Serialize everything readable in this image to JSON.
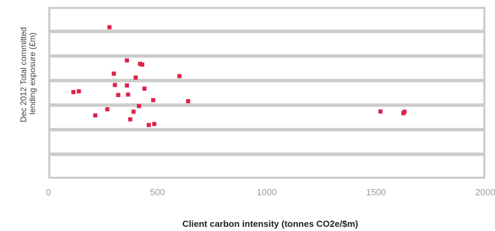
{
  "chart_data": {
    "type": "scatter",
    "title": "",
    "xlabel": "Client carbon intensity (tonnes CO2e/$m)",
    "ylabel_lines": [
      "Dec 2012 Total committed",
      "lending exposure (£m)"
    ],
    "xlim": [
      0,
      2000
    ],
    "x_ticks": [
      0,
      500,
      1000,
      1500,
      2000
    ],
    "x_tick_labels": [
      "0",
      "500",
      "1000",
      "1500",
      "2000"
    ],
    "ylim": [
      0,
      7
    ],
    "y_gridlines": [
      1,
      2,
      3,
      4,
      5,
      6
    ],
    "y_tick_labels": [],
    "grid": "horizontal",
    "legend": "none",
    "colors": {
      "marker": "#e0204a",
      "plot_background": "#ffffff",
      "panel_border": "#cccccc",
      "gridline": "#cccccc"
    },
    "series": [
      {
        "x": [
          280,
          360,
          420,
          430,
          300,
          400,
          600,
          305,
          360,
          440,
          115,
          140,
          320,
          365,
          480,
          640,
          415,
          270,
          390,
          215,
          375,
          485,
          460,
          1520,
          1630,
          1625
        ],
        "y": [
          6.17,
          4.82,
          4.68,
          4.65,
          4.28,
          4.12,
          4.18,
          3.82,
          3.8,
          3.67,
          3.53,
          3.56,
          3.41,
          3.43,
          3.2,
          3.16,
          2.96,
          2.83,
          2.73,
          2.58,
          2.42,
          2.23,
          2.19,
          2.74,
          2.73,
          2.67
        ]
      }
    ]
  }
}
